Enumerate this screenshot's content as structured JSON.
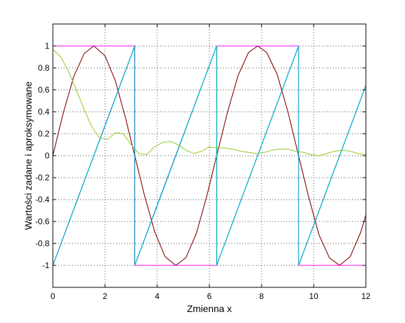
{
  "chart_data": {
    "type": "line",
    "title": "",
    "xlabel": "Zmienna x",
    "ylabel": "Wartości zadane i aproksymowane",
    "xlim": [
      0,
      12
    ],
    "ylim": [
      -1.2,
      1.2
    ],
    "xticks": [
      0,
      2,
      4,
      6,
      8,
      10,
      12
    ],
    "yticks": [
      -1,
      -0.8,
      -0.6,
      -0.4,
      -0.2,
      0,
      0.2,
      0.4,
      0.6,
      0.8,
      1
    ],
    "xtick_labels": [
      "0",
      "2",
      "4",
      "6",
      "8",
      "10",
      "12"
    ],
    "ytick_labels": [
      "-1",
      "-0.8",
      "-0.6",
      "-0.4",
      "-0.2",
      "0",
      "0.2",
      "0.4",
      "0.6",
      "0.8",
      "1"
    ],
    "grid": true,
    "legend": "none",
    "series": [
      {
        "color": "#800000",
        "x": [
          0,
          0.4,
          0.8,
          1.2,
          1.57,
          2.0,
          2.4,
          2.8,
          3.14,
          3.5,
          3.9,
          4.3,
          4.71,
          5.1,
          5.5,
          5.9,
          6.28,
          6.7,
          7.1,
          7.5,
          7.85,
          8.2,
          8.6,
          9.0,
          9.42,
          9.8,
          10.2,
          10.6,
          10.99,
          11.4,
          11.8,
          12.0
        ],
        "values": [
          0,
          0.39,
          0.72,
          0.93,
          1.0,
          0.91,
          0.68,
          0.33,
          0,
          -0.35,
          -0.69,
          -0.92,
          -1.0,
          -0.93,
          -0.71,
          -0.37,
          0,
          0.4,
          0.73,
          0.94,
          1.0,
          0.94,
          0.74,
          0.41,
          0,
          -0.37,
          -0.72,
          -0.93,
          -1.0,
          -0.92,
          -0.7,
          -0.54
        ]
      },
      {
        "color": "#0000ff",
        "x": [
          0,
          3.14,
          3.14,
          6.28,
          6.28,
          9.42,
          9.42,
          12.0
        ],
        "values": [
          -1,
          1,
          -1,
          1,
          -1,
          1,
          -1,
          0.64
        ]
      },
      {
        "color": "#ff00ff",
        "x": [
          0,
          3.14,
          3.14,
          6.28,
          6.28,
          9.42,
          9.42,
          12.0
        ],
        "values": [
          1,
          1,
          -1,
          -1,
          1,
          1,
          -1,
          -1
        ]
      },
      {
        "color": "#9acd32",
        "x": [
          0,
          0.3,
          0.6,
          0.9,
          1.2,
          1.5,
          1.8,
          2.1,
          2.4,
          2.7,
          3.0,
          3.3,
          3.6,
          3.9,
          4.2,
          4.5,
          4.8,
          5.1,
          5.4,
          5.7,
          6.0,
          6.3,
          6.6,
          6.9,
          7.2,
          7.5,
          7.8,
          8.1,
          8.4,
          8.7,
          9.0,
          9.3,
          9.6,
          9.9,
          10.2,
          10.5,
          10.8,
          11.1,
          11.4,
          11.7,
          12.0
        ],
        "values": [
          0.97,
          0.9,
          0.77,
          0.6,
          0.42,
          0.26,
          0.16,
          0.15,
          0.21,
          0.2,
          0.1,
          0.02,
          0.01,
          0.08,
          0.12,
          0.13,
          0.1,
          0.05,
          0.02,
          0.04,
          0.08,
          0.07,
          0.07,
          0.06,
          0.04,
          0.03,
          0.02,
          0.03,
          0.05,
          0.06,
          0.06,
          0.04,
          0.03,
          0.01,
          0.0,
          0.02,
          0.04,
          0.05,
          0.04,
          0.02,
          0.01
        ]
      },
      {
        "color": "#00bfbf",
        "x": [
          0,
          1.0,
          2.0,
          3.14,
          3.14,
          4.2,
          5.2,
          6.28,
          6.28,
          7.3,
          8.4,
          9.42,
          9.42,
          10.4,
          11.4,
          12.0
        ],
        "values": [
          -1,
          -0.36,
          0.27,
          1,
          -1,
          -0.33,
          0.31,
          1,
          -1,
          -0.35,
          0.35,
          1,
          -1,
          -0.38,
          0.26,
          0.64
        ]
      }
    ]
  }
}
